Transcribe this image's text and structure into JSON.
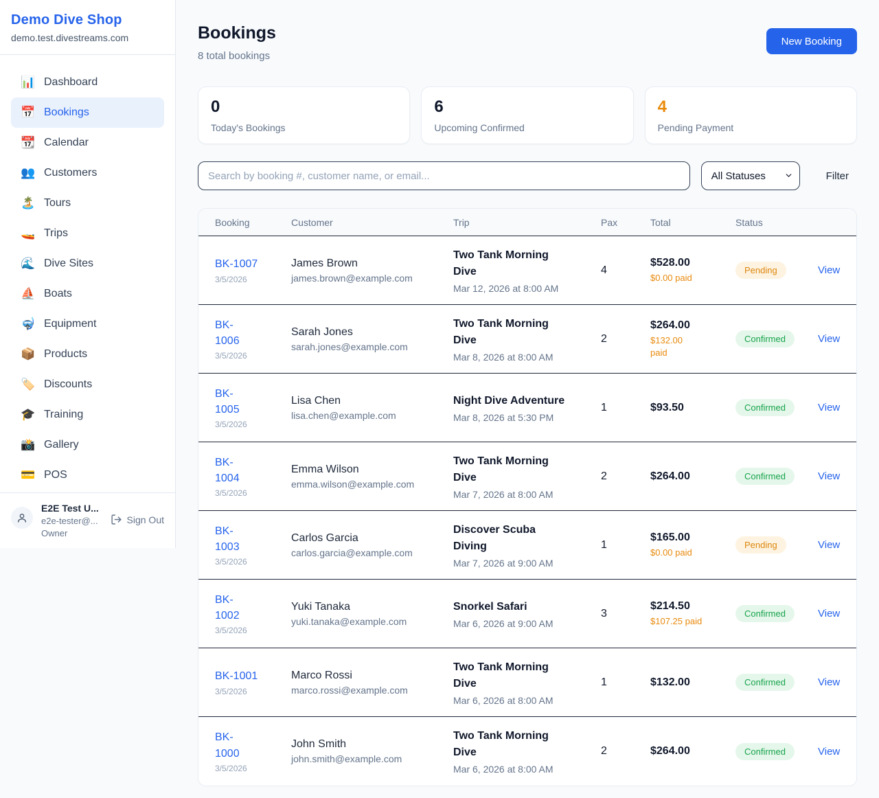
{
  "colors": {
    "accent_blue": "#2563eb",
    "orange": "#ea8a0c",
    "pending_bg": "#fdf3e0",
    "pending_text": "#dd860f",
    "confirmed_bg": "#e5f7eb",
    "confirmed_text": "#16a34a"
  },
  "sidebar": {
    "shop_name": "Demo Dive Shop",
    "domain": "demo.test.divestreams.com",
    "items": [
      {
        "icon": "📊",
        "icon_name": "bar-chart-icon",
        "label": "Dashboard",
        "active": false
      },
      {
        "icon": "📅",
        "icon_name": "calendar-date-icon",
        "label": "Bookings",
        "active": true
      },
      {
        "icon": "📆",
        "icon_name": "tear-off-calendar-icon",
        "label": "Calendar",
        "active": false
      },
      {
        "icon": "👥",
        "icon_name": "people-icon",
        "label": "Customers",
        "active": false
      },
      {
        "icon": "🏝️",
        "icon_name": "island-icon",
        "label": "Tours",
        "active": false
      },
      {
        "icon": "🚤",
        "icon_name": "speedboat-icon",
        "label": "Trips",
        "active": false
      },
      {
        "icon": "🌊",
        "icon_name": "wave-icon",
        "label": "Dive Sites",
        "active": false
      },
      {
        "icon": "⛵",
        "icon_name": "sailboat-icon",
        "label": "Boats",
        "active": false
      },
      {
        "icon": "🤿",
        "icon_name": "diving-mask-icon",
        "label": "Equipment",
        "active": false
      },
      {
        "icon": "📦",
        "icon_name": "package-icon",
        "label": "Products",
        "active": false
      },
      {
        "icon": "🏷️",
        "icon_name": "label-tag-icon",
        "label": "Discounts",
        "active": false
      },
      {
        "icon": "🎓",
        "icon_name": "graduation-cap-icon",
        "label": "Training",
        "active": false
      },
      {
        "icon": "📸",
        "icon_name": "camera-flash-icon",
        "label": "Gallery",
        "active": false
      },
      {
        "icon": "💳",
        "icon_name": "credit-card-icon",
        "label": "POS",
        "active": false
      }
    ],
    "user": {
      "name": "E2E Test U...",
      "email": "e2e-tester@...",
      "role": "Owner",
      "sign_out_label": "Sign Out"
    }
  },
  "header": {
    "title": "Bookings",
    "subtitle": "8 total bookings",
    "new_booking_label": "New Booking"
  },
  "stats": [
    {
      "value": "0",
      "label": "Today's Bookings",
      "color": "dark"
    },
    {
      "value": "6",
      "label": "Upcoming Confirmed",
      "color": "dark"
    },
    {
      "value": "4",
      "label": "Pending Payment",
      "color": "orange"
    }
  ],
  "controls": {
    "search_placeholder": "Search by booking #, customer name, or email...",
    "status_filter_value": "All Statuses",
    "filter_label": "Filter"
  },
  "table": {
    "columns": [
      "Booking",
      "Customer",
      "Trip",
      "Pax",
      "Total",
      "Status"
    ],
    "rows": [
      {
        "ref_lines": [
          "BK-1007"
        ],
        "date": "3/5/2026",
        "customer": "James Brown",
        "email": "james.brown@example.com",
        "trip_lines": [
          "Two Tank Morning",
          "Dive"
        ],
        "trip_datetime": "Mar 12, 2026 at 8:00 AM",
        "pax": "4",
        "total": "$528.00",
        "paid_lines": [
          "$0.00 paid"
        ],
        "status": "Pending",
        "action": "View"
      },
      {
        "ref_lines": [
          "BK-",
          "1006"
        ],
        "date": "3/5/2026",
        "customer": "Sarah Jones",
        "email": "sarah.jones@example.com",
        "trip_lines": [
          "Two Tank Morning",
          "Dive"
        ],
        "trip_datetime": "Mar 8, 2026 at 8:00 AM",
        "pax": "2",
        "total": "$264.00",
        "paid_lines": [
          "$132.00",
          "paid"
        ],
        "status": "Confirmed",
        "action": "View"
      },
      {
        "ref_lines": [
          "BK-",
          "1005"
        ],
        "date": "3/5/2026",
        "customer": "Lisa Chen",
        "email": "lisa.chen@example.com",
        "trip_lines": [
          "Night Dive Adventure"
        ],
        "trip_datetime": "Mar 8, 2026 at 5:30 PM",
        "pax": "1",
        "total": "$93.50",
        "paid_lines": [],
        "status": "Confirmed",
        "action": "View"
      },
      {
        "ref_lines": [
          "BK-",
          "1004"
        ],
        "date": "3/5/2026",
        "customer": "Emma Wilson",
        "email": "emma.wilson@example.com",
        "trip_lines": [
          "Two Tank Morning",
          "Dive"
        ],
        "trip_datetime": "Mar 7, 2026 at 8:00 AM",
        "pax": "2",
        "total": "$264.00",
        "paid_lines": [],
        "status": "Confirmed",
        "action": "View"
      },
      {
        "ref_lines": [
          "BK-",
          "1003"
        ],
        "date": "3/5/2026",
        "customer": "Carlos Garcia",
        "email": "carlos.garcia@example.com",
        "trip_lines": [
          "Discover Scuba",
          "Diving"
        ],
        "trip_datetime": "Mar 7, 2026 at 9:00 AM",
        "pax": "1",
        "total": "$165.00",
        "paid_lines": [
          "$0.00 paid"
        ],
        "status": "Pending",
        "action": "View"
      },
      {
        "ref_lines": [
          "BK-",
          "1002"
        ],
        "date": "3/5/2026",
        "customer": "Yuki Tanaka",
        "email": "yuki.tanaka@example.com",
        "trip_lines": [
          "Snorkel Safari"
        ],
        "trip_datetime": "Mar 6, 2026 at 9:00 AM",
        "pax": "3",
        "total": "$214.50",
        "paid_lines": [
          "$107.25 paid"
        ],
        "status": "Confirmed",
        "action": "View"
      },
      {
        "ref_lines": [
          "BK-1001"
        ],
        "date": "3/5/2026",
        "customer": "Marco Rossi",
        "email": "marco.rossi@example.com",
        "trip_lines": [
          "Two Tank Morning",
          "Dive"
        ],
        "trip_datetime": "Mar 6, 2026 at 8:00 AM",
        "pax": "1",
        "total": "$132.00",
        "paid_lines": [],
        "status": "Confirmed",
        "action": "View"
      },
      {
        "ref_lines": [
          "BK-",
          "1000"
        ],
        "date": "3/5/2026",
        "customer": "John Smith",
        "email": "john.smith@example.com",
        "trip_lines": [
          "Two Tank Morning",
          "Dive"
        ],
        "trip_datetime": "Mar 6, 2026 at 8:00 AM",
        "pax": "2",
        "total": "$264.00",
        "paid_lines": [],
        "status": "Confirmed",
        "action": "View"
      }
    ]
  }
}
